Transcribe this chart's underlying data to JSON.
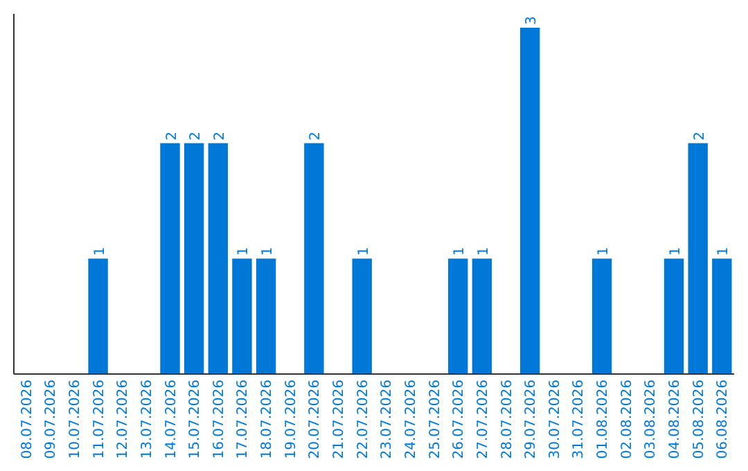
{
  "chart_data": {
    "type": "bar",
    "categories": [
      "08.07.2026",
      "09.07.2026",
      "10.07.2026",
      "11.07.2026",
      "12.07.2026",
      "13.07.2026",
      "14.07.2026",
      "15.07.2026",
      "16.07.2026",
      "17.07.2026",
      "18.07.2026",
      "19.07.2026",
      "20.07.2026",
      "21.07.2026",
      "22.07.2026",
      "23.07.2026",
      "24.07.2026",
      "25.07.2026",
      "26.07.2026",
      "27.07.2026",
      "28.07.2026",
      "29.07.2026",
      "30.07.2026",
      "31.07.2026",
      "01.08.2026",
      "02.08.2026",
      "03.08.2026",
      "04.08.2026",
      "05.08.2026",
      "06.08.2026"
    ],
    "values": [
      0,
      0,
      0,
      1,
      0,
      0,
      2,
      2,
      2,
      1,
      1,
      0,
      2,
      0,
      1,
      0,
      0,
      0,
      1,
      1,
      0,
      3,
      0,
      0,
      1,
      0,
      0,
      1,
      2,
      1
    ],
    "value_labels": [
      null,
      null,
      null,
      "1",
      null,
      null,
      "2",
      "2",
      "2",
      "1",
      "1",
      null,
      "2",
      null,
      "1",
      null,
      null,
      null,
      "1",
      "1",
      null,
      "3",
      null,
      null,
      "1",
      null,
      null,
      "1",
      "2",
      "1"
    ],
    "color": "#0078d7",
    "grid": false
  }
}
